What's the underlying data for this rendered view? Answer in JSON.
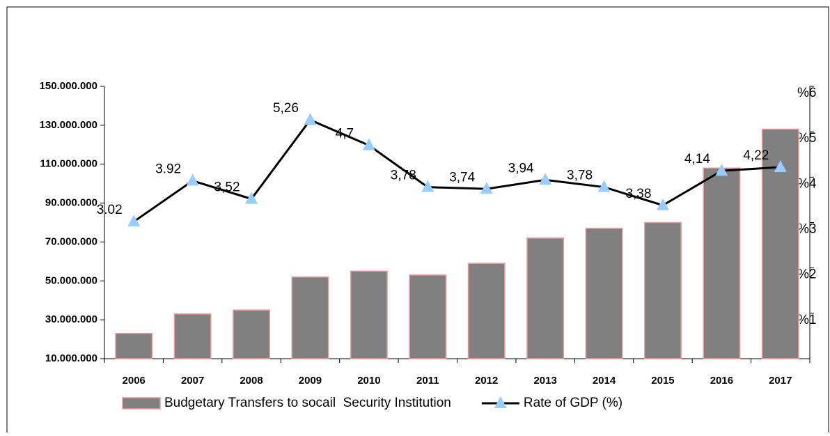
{
  "chart_data": {
    "type": "bar",
    "categories": [
      "2006",
      "2007",
      "2008",
      "2009",
      "2010",
      "2011",
      "2012",
      "2013",
      "2014",
      "2015",
      "2016",
      "2017"
    ],
    "series": [
      {
        "name": "Budgetary Transfers to socail  Security Institution",
        "type": "bar",
        "color": "#808080",
        "edge_color": "#e89a9a",
        "values": [
          23000000,
          33000000,
          35000000,
          52000000,
          55000000,
          53000000,
          59000000,
          72000000,
          77000000,
          80000000,
          108000000,
          128000000
        ]
      },
      {
        "name": "Rate of GDP (%)",
        "type": "line",
        "axis": "y2",
        "color": "#000000",
        "marker_color": "#99ccff",
        "values": [
          3.02,
          3.92,
          3.52,
          5.26,
          4.7,
          3.78,
          3.74,
          3.94,
          3.78,
          3.38,
          4.14,
          4.22
        ],
        "value_labels": [
          "3.02",
          "3.92",
          "3,52",
          "5,26",
          "4,7",
          "3,78",
          "3,74",
          "3,94",
          "3,78",
          "3,38",
          "4,14",
          "4,22"
        ]
      }
    ],
    "ylim": [
      10000000,
      150000000
    ],
    "yticks": [
      {
        "value": 10000000,
        "label": "10.000.000"
      },
      {
        "value": 30000000,
        "label": "30.000.000"
      },
      {
        "value": 50000000,
        "label": "50.000.000"
      },
      {
        "value": 70000000,
        "label": "70.000.000"
      },
      {
        "value": 90000000,
        "label": "90.000.000"
      },
      {
        "value": 110000000,
        "label": "110.000.000"
      },
      {
        "value": 130000000,
        "label": "130.000.000"
      },
      {
        "value": 150000000,
        "label": "150.000.000"
      }
    ],
    "y2lim": [
      0,
      6
    ],
    "y2ticks": [
      {
        "value": 1,
        "label": "%1"
      },
      {
        "value": 2,
        "label": "%2"
      },
      {
        "value": 3,
        "label": "%3"
      },
      {
        "value": 4,
        "label": "%4"
      },
      {
        "value": 5,
        "label": "%5"
      },
      {
        "value": 6,
        "label": "%6"
      }
    ],
    "legend": "bottom"
  }
}
